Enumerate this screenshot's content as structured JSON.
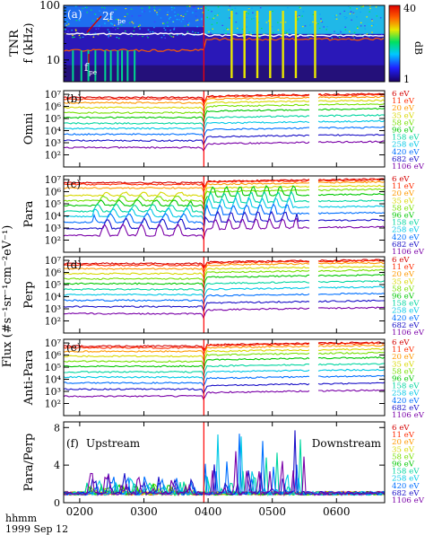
{
  "figure": {
    "ylabel_flux": "Flux (#s⁻¹sr⁻¹cm⁻²eV⁻¹)",
    "time_header": "hhmm",
    "date": "1999 Sep 12"
  },
  "chart_data": [
    {
      "type": "heatmap",
      "panel": "(a)",
      "ylabel": "TNR\nf (kHz)",
      "yscale": "log",
      "ylim": [
        4,
        100
      ],
      "y_ticks": [
        10,
        100
      ],
      "annotations": [
        "2f",
        "pe",
        "f",
        "pe"
      ],
      "colorbar": {
        "label": "dB",
        "range": [
          1,
          40
        ],
        "ticks": [
          "1",
          "40"
        ]
      },
      "shock_time": "0356"
    },
    {
      "type": "line",
      "panel": "(b)",
      "ylabel": "Omni",
      "yscale": "log",
      "ylim": [
        10.0,
        10000000.0
      ],
      "y_ticks": [
        "10²",
        "10³",
        "10⁴",
        "10⁵",
        "10⁶",
        "10⁷"
      ],
      "x_ticks": [
        "0200",
        "0300",
        "0400",
        "0500",
        "0600"
      ],
      "series": [
        {
          "name": "6 eV",
          "upstream": 5500000.0,
          "downstream": 7000000.0
        },
        {
          "name": "11 eV",
          "upstream": 4000000.0,
          "downstream": 6000000.0
        },
        {
          "name": "20 eV",
          "upstream": 2000000.0,
          "downstream": 4000000.0
        },
        {
          "name": "35 eV",
          "upstream": 800000.0,
          "downstream": 2000000.0
        },
        {
          "name": "58 eV",
          "upstream": 300000.0,
          "downstream": 1000000.0
        },
        {
          "name": "96 eV",
          "upstream": 120000.0,
          "downstream": 400000.0
        },
        {
          "name": "158 eV",
          "upstream": 40000.0,
          "downstream": 120000.0
        },
        {
          "name": "258 eV",
          "upstream": 15000.0,
          "downstream": 40000.0
        },
        {
          "name": "420 eV",
          "upstream": 5000.0,
          "downstream": 12000.0
        },
        {
          "name": "682 eV",
          "upstream": 1500.0,
          "downstream": 3000.0
        },
        {
          "name": "1106 eV",
          "upstream": 400.0,
          "downstream": 800.0
        }
      ]
    },
    {
      "type": "line",
      "panel": "(c)",
      "ylabel": "Para",
      "yscale": "log",
      "ylim": [
        10.0,
        10000000.0
      ],
      "y_ticks": [
        "10²",
        "10³",
        "10⁴",
        "10⁵",
        "10⁶",
        "10⁷"
      ],
      "x_ticks": [
        "0200",
        "0300",
        "0400",
        "0500",
        "0600"
      ],
      "series_ref": "panel (b) energies; upstream beams between 0215 and 0345"
    },
    {
      "type": "line",
      "panel": "(d)",
      "ylabel": "Perp",
      "yscale": "log",
      "ylim": [
        10.0,
        10000000.0
      ],
      "y_ticks": [
        "10²",
        "10³",
        "10⁴",
        "10⁵",
        "10⁶",
        "10⁷"
      ],
      "x_ticks": [
        "0200",
        "0300",
        "0400",
        "0500",
        "0600"
      ]
    },
    {
      "type": "line",
      "panel": "(e)",
      "ylabel": "Anti-Para",
      "yscale": "log",
      "ylim": [
        10.0,
        10000000.0
      ],
      "y_ticks": [
        "10²",
        "10³",
        "10⁴",
        "10⁵",
        "10⁶",
        "10⁷"
      ],
      "x_ticks": [
        "0200",
        "0300",
        "0400",
        "0500",
        "0600"
      ]
    },
    {
      "type": "line",
      "panel": "(f)",
      "ylabel": "Para/Perp",
      "ylim": [
        0,
        8
      ],
      "y_ticks": [
        "0",
        "4",
        "8"
      ],
      "x_ticks": [
        "0200",
        "0300",
        "0400",
        "0500",
        "0600"
      ],
      "annotations": [
        "Upstream",
        "Downstream"
      ]
    }
  ],
  "energies": [
    {
      "label": "6 eV",
      "color": "#d40000"
    },
    {
      "label": "11 eV",
      "color": "#ff2a00"
    },
    {
      "label": "20 eV",
      "color": "#ff9900"
    },
    {
      "label": "35 eV",
      "color": "#d8d800"
    },
    {
      "label": "58 eV",
      "color": "#77e000"
    },
    {
      "label": "96 eV",
      "color": "#00c800"
    },
    {
      "label": "158 eV",
      "color": "#00d6a0"
    },
    {
      "label": "258 eV",
      "color": "#00c8e6"
    },
    {
      "label": "420 eV",
      "color": "#0070ff"
    },
    {
      "label": "682 eV",
      "color": "#1a10c8"
    },
    {
      "label": "1106 eV",
      "color": "#7a00a8"
    }
  ]
}
